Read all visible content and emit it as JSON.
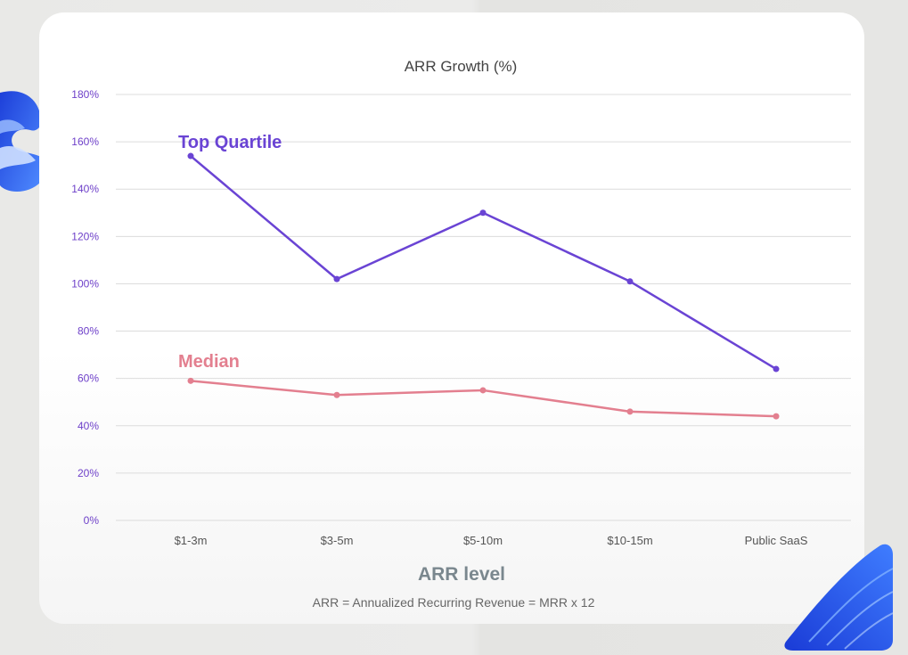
{
  "chart_data": {
    "type": "line",
    "title": "ARR Growth (%)",
    "xlabel": "ARR level",
    "footnote": "ARR = Annualized Recurring Revenue = MRR x 12",
    "categories": [
      "$1-3m",
      "$3-5m",
      "$5-10m",
      "$10-15m",
      "Public SaaS"
    ],
    "yticks": [
      "0%",
      "20%",
      "40%",
      "60%",
      "80%",
      "100%",
      "120%",
      "140%",
      "160%",
      "180%"
    ],
    "ylim": [
      0,
      180
    ],
    "grid": true,
    "series": [
      {
        "name": "Top Quartile",
        "color": "#6a44d4",
        "values": [
          154,
          102,
          130,
          101,
          64
        ]
      },
      {
        "name": "Median",
        "color": "#e37f8f",
        "values": [
          59,
          53,
          55,
          46,
          44
        ]
      }
    ]
  },
  "colors": {
    "axis_text": "#6e40c9",
    "title_text": "#444444",
    "xlabel_text": "#7a878e",
    "grid": "#dcdcdc"
  }
}
